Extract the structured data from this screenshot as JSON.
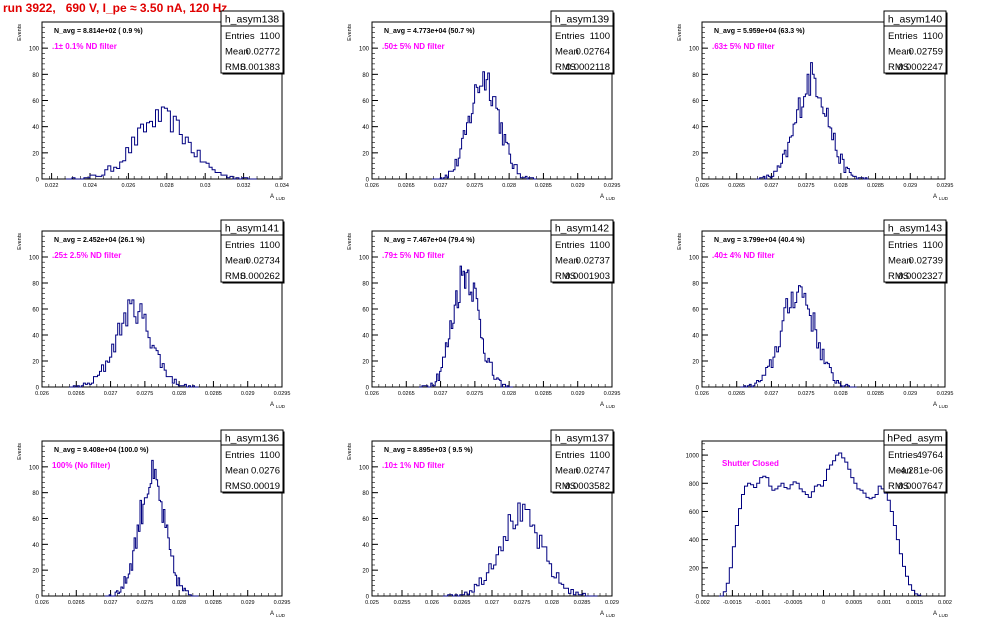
{
  "run_title": "run 3922,   690 V, I_pe ≈ 3.50 nA, 120 Hz",
  "colors": {
    "histogram_line": "#000080",
    "annotation_magenta": "#ff00ff",
    "title_red": "#e00000"
  },
  "chart_data": [
    {
      "type": "histogram",
      "name": "h_asym138",
      "stats": {
        "entries_label": "Entries",
        "entries": "1100",
        "mean_label": "Mean",
        "mean": "0.02772",
        "rms_label": "RMS",
        "rms": "0.001383"
      },
      "navg_text": "N_avg = 8.814e+02 ( 0.9 %)",
      "filter_text": ".1± 0.1% ND filter",
      "xlabel": "A",
      "xlabel_sub": "LUD",
      "ylabel": "Events",
      "xlim": [
        0.0215,
        0.034
      ],
      "ylim": [
        0,
        120
      ],
      "xticks": [
        "0.022",
        "0.024",
        "0.026",
        "0.028",
        "0.03",
        "0.032",
        "0.034"
      ],
      "xtick_values": [
        0.022,
        0.024,
        0.026,
        0.028,
        0.03,
        0.032,
        0.034
      ],
      "yticks": [
        "0",
        "20",
        "40",
        "60",
        "80",
        "100"
      ],
      "peak_x": 0.02772,
      "width": 0.00138,
      "peak_y": 47
    },
    {
      "type": "histogram",
      "name": "h_asym139",
      "stats": {
        "entries_label": "Entries",
        "entries": "1100",
        "mean_label": "Mean",
        "mean": "0.02764",
        "rms_label": "RMS",
        "rms": "0.0002118"
      },
      "navg_text": "N_avg = 4.773e+04 (50.7 %)",
      "filter_text": ".50± 5% ND filter",
      "xlabel": "A",
      "xlabel_sub": "LUD",
      "ylabel": "Events",
      "xlim": [
        0.026,
        0.0295
      ],
      "ylim": [
        0,
        120
      ],
      "xticks": [
        "0.026",
        "0.0265",
        "0.027",
        "0.0275",
        "0.028",
        "0.0285",
        "0.029",
        "0.0295"
      ],
      "xtick_values": [
        0.026,
        0.0265,
        0.027,
        0.0275,
        0.028,
        0.0285,
        0.029,
        0.0295
      ],
      "yticks": [
        "0",
        "20",
        "40",
        "60",
        "80",
        "100"
      ],
      "peak_x": 0.02764,
      "width": 0.000212,
      "peak_y": 78
    },
    {
      "type": "histogram",
      "name": "h_asym140",
      "stats": {
        "entries_label": "Entries",
        "entries": "1100",
        "mean_label": "Mean",
        "mean": "0.02759",
        "rms_label": "RMS",
        "rms": "0.0002247"
      },
      "navg_text": "N_avg = 5.959e+04 (63.3 %)",
      "filter_text": ".63± 5% ND filter",
      "xlabel": "A",
      "xlabel_sub": "LUD",
      "ylabel": "Events",
      "xlim": [
        0.026,
        0.0295
      ],
      "ylim": [
        0,
        120
      ],
      "xticks": [
        "0.026",
        "0.0265",
        "0.027",
        "0.0275",
        "0.028",
        "0.0285",
        "0.029",
        "0.0295"
      ],
      "xtick_values": [
        0.026,
        0.0265,
        0.027,
        0.0275,
        0.028,
        0.0285,
        0.029,
        0.0295
      ],
      "yticks": [
        "0",
        "20",
        "40",
        "60",
        "80",
        "100"
      ],
      "peak_x": 0.02759,
      "width": 0.000225,
      "peak_y": 77
    },
    {
      "type": "histogram",
      "name": "h_asym141",
      "stats": {
        "entries_label": "Entries",
        "entries": "1100",
        "mean_label": "Mean",
        "mean": "0.02734",
        "rms_label": "RMS",
        "rms": "0.000262"
      },
      "navg_text": "N_avg = 2.452e+04 (26.1 %)",
      "filter_text": ".25± 2.5% ND filter",
      "xlabel": "A",
      "xlabel_sub": "LUD",
      "ylabel": "Events",
      "xlim": [
        0.026,
        0.0295
      ],
      "ylim": [
        0,
        120
      ],
      "xticks": [
        "0.026",
        "0.0265",
        "0.027",
        "0.0275",
        "0.028",
        "0.0285",
        "0.029",
        "0.0295"
      ],
      "xtick_values": [
        0.026,
        0.0265,
        0.027,
        0.0275,
        0.028,
        0.0285,
        0.029,
        0.0295
      ],
      "yticks": [
        "0",
        "20",
        "40",
        "60",
        "80",
        "100"
      ],
      "peak_x": 0.02734,
      "width": 0.000262,
      "peak_y": 60
    },
    {
      "type": "histogram",
      "name": "h_asym142",
      "stats": {
        "entries_label": "Entries",
        "entries": "1100",
        "mean_label": "Mean",
        "mean": "0.02737",
        "rms_label": "RMS",
        "rms": "0.0001903"
      },
      "navg_text": "N_avg = 7.467e+04 (79.4 %)",
      "filter_text": ".79± 5% ND filter",
      "xlabel": "A",
      "xlabel_sub": "LUD",
      "ylabel": "Events",
      "xlim": [
        0.026,
        0.0295
      ],
      "ylim": [
        0,
        120
      ],
      "xticks": [
        "0.026",
        "0.0265",
        "0.027",
        "0.0275",
        "0.028",
        "0.0285",
        "0.029",
        "0.0295"
      ],
      "xtick_values": [
        0.026,
        0.0265,
        0.027,
        0.0275,
        0.028,
        0.0285,
        0.029,
        0.0295
      ],
      "yticks": [
        "0",
        "20",
        "40",
        "60",
        "80",
        "100"
      ],
      "peak_x": 0.02737,
      "width": 0.00019,
      "peak_y": 89
    },
    {
      "type": "histogram",
      "name": "h_asym143",
      "stats": {
        "entries_label": "Entries",
        "entries": "1100",
        "mean_label": "Mean",
        "mean": "0.02739",
        "rms_label": "RMS",
        "rms": "0.0002327"
      },
      "navg_text": "N_avg = 3.799e+04 (40.4 %)",
      "filter_text": ".40± 4% ND filter",
      "xlabel": "A",
      "xlabel_sub": "LUD",
      "ylabel": "Events",
      "xlim": [
        0.026,
        0.0295
      ],
      "ylim": [
        0,
        120
      ],
      "xticks": [
        "0.026",
        "0.0265",
        "0.027",
        "0.0275",
        "0.028",
        "0.0285",
        "0.029",
        "0.0295"
      ],
      "xtick_values": [
        0.026,
        0.0265,
        0.027,
        0.0275,
        0.028,
        0.0285,
        0.029,
        0.0295
      ],
      "yticks": [
        "0",
        "20",
        "40",
        "60",
        "80",
        "100"
      ],
      "peak_x": 0.02739,
      "width": 0.000233,
      "peak_y": 75
    },
    {
      "type": "histogram",
      "name": "h_asym136",
      "stats": {
        "entries_label": "Entries",
        "entries": "1100",
        "mean_label": "Mean",
        "mean": "0.0276",
        "rms_label": "RMS",
        "rms": "0.00019"
      },
      "navg_text": "N_avg = 9.408e+04 (100.0 %)",
      "filter_text": "100% (No filter)",
      "xlabel": "A",
      "xlabel_sub": "LUD",
      "ylabel": "Events",
      "xlim": [
        0.026,
        0.0295
      ],
      "ylim": [
        0,
        120
      ],
      "xticks": [
        "0.026",
        "0.0265",
        "0.027",
        "0.0275",
        "0.028",
        "0.0285",
        "0.029",
        "0.0295"
      ],
      "xtick_values": [
        0.026,
        0.0265,
        0.027,
        0.0275,
        0.028,
        0.0285,
        0.029,
        0.0295
      ],
      "yticks": [
        "0",
        "20",
        "40",
        "60",
        "80",
        "100"
      ],
      "peak_x": 0.0276,
      "width": 0.00019,
      "peak_y": 90
    },
    {
      "type": "histogram",
      "name": "h_asym137",
      "stats": {
        "entries_label": "Entries",
        "entries": "1100",
        "mean_label": "Mean",
        "mean": "0.02747",
        "rms_label": "RMS",
        "rms": "0.0003582"
      },
      "navg_text": "N_avg = 8.895e+03 ( 9.5 %)",
      "filter_text": ".10± 1% ND filter",
      "xlabel": "A",
      "xlabel_sub": "LUD",
      "ylabel": "Events",
      "xlim": [
        0.025,
        0.029
      ],
      "ylim": [
        0,
        120
      ],
      "xticks": [
        "0.025",
        "0.0255",
        "0.026",
        "0.0265",
        "0.027",
        "0.0275",
        "0.028",
        "0.0285",
        "0.029"
      ],
      "xtick_values": [
        0.025,
        0.0255,
        0.026,
        0.0265,
        0.027,
        0.0275,
        0.028,
        0.0285,
        0.029
      ],
      "yticks": [
        "0",
        "20",
        "40",
        "60",
        "80",
        "100"
      ],
      "peak_x": 0.02747,
      "width": 0.000358,
      "peak_y": 62
    },
    {
      "type": "histogram",
      "name": "hPed_asym",
      "stats": {
        "entries_label": "Entries",
        "entries": "49764",
        "mean_label": "Mean",
        "mean": "-4.281e-06",
        "rms_label": "RMS",
        "rms": "0.0007647"
      },
      "navg_text": "",
      "filter_text": "Shutter Closed",
      "xlabel": "A",
      "xlabel_sub": "LUD",
      "ylabel": "",
      "xlim": [
        -0.002,
        0.002
      ],
      "ylim": [
        0,
        1100
      ],
      "xticks": [
        "-0.002",
        "-0.0015",
        "-0.001",
        "-0.0005",
        "0",
        "0.0005",
        "0.001",
        "0.0015",
        "0.002"
      ],
      "xtick_values": [
        -0.002,
        -0.0015,
        -0.001,
        -0.0005,
        0,
        0.0005,
        0.001,
        0.0015,
        0.002
      ],
      "yticks": [
        "0",
        "200",
        "400",
        "600",
        "800",
        "1000"
      ],
      "profile": [
        [
          -0.00172,
          0
        ],
        [
          -0.00165,
          30
        ],
        [
          -0.0016,
          90
        ],
        [
          -0.00155,
          200
        ],
        [
          -0.0015,
          350
        ],
        [
          -0.00145,
          500
        ],
        [
          -0.0014,
          620
        ],
        [
          -0.00135,
          720
        ],
        [
          -0.0013,
          780
        ],
        [
          -0.00125,
          800
        ],
        [
          -0.0012,
          790
        ],
        [
          -0.00115,
          770
        ],
        [
          -0.0011,
          800
        ],
        [
          -0.00105,
          840
        ],
        [
          -0.001,
          850
        ],
        [
          -0.00095,
          840
        ],
        [
          -0.0009,
          780
        ],
        [
          -0.00085,
          750
        ],
        [
          -0.0008,
          760
        ],
        [
          -0.00075,
          780
        ],
        [
          -0.0007,
          800
        ],
        [
          -0.00065,
          770
        ],
        [
          -0.0006,
          760
        ],
        [
          -0.00055,
          790
        ],
        [
          -0.0005,
          810
        ],
        [
          -0.00045,
          800
        ],
        [
          -0.0004,
          760
        ],
        [
          -0.00035,
          740
        ],
        [
          -0.0003,
          720
        ],
        [
          -0.00025,
          700
        ],
        [
          -0.0002,
          740
        ],
        [
          -0.00015,
          780
        ],
        [
          -0.0001,
          790
        ],
        [
          -5e-05,
          780
        ],
        [
          0,
          820
        ],
        [
          5e-05,
          900
        ],
        [
          0.0001,
          930
        ],
        [
          0.00015,
          960
        ],
        [
          0.0002,
          1000
        ],
        [
          0.00025,
          1015
        ],
        [
          0.0003,
          980
        ],
        [
          0.00035,
          950
        ],
        [
          0.0004,
          900
        ],
        [
          0.00045,
          840
        ],
        [
          0.0005,
          800
        ],
        [
          0.00055,
          760
        ],
        [
          0.0006,
          750
        ],
        [
          0.00065,
          730
        ],
        [
          0.0007,
          700
        ],
        [
          0.00075,
          690
        ],
        [
          0.0008,
          700
        ],
        [
          0.00085,
          720
        ],
        [
          0.0009,
          780
        ],
        [
          0.00095,
          760
        ],
        [
          0.001,
          730
        ],
        [
          0.00105,
          680
        ],
        [
          0.0011,
          600
        ],
        [
          0.00115,
          500
        ],
        [
          0.0012,
          400
        ],
        [
          0.00125,
          300
        ],
        [
          0.0013,
          210
        ],
        [
          0.00135,
          140
        ],
        [
          0.0014,
          80
        ],
        [
          0.00145,
          40
        ],
        [
          0.0015,
          15
        ],
        [
          0.00155,
          5
        ],
        [
          0.0016,
          0
        ]
      ]
    }
  ]
}
